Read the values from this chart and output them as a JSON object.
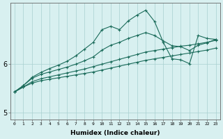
{
  "xlabel": "Humidex (Indice chaleur)",
  "bg_color": "#d8f0f0",
  "grid_color": "#a8d0d0",
  "line_color": "#1a6b5a",
  "ylim_min": 4.85,
  "ylim_max": 7.25,
  "yticks": [
    5.0,
    6.0
  ],
  "xticks": [
    0,
    1,
    2,
    3,
    4,
    5,
    6,
    7,
    8,
    9,
    10,
    11,
    12,
    13,
    14,
    15,
    16,
    17,
    18,
    19,
    20,
    21,
    22,
    23
  ],
  "x_values": [
    0,
    1,
    2,
    3,
    4,
    5,
    6,
    7,
    8,
    9,
    10,
    11,
    12,
    13,
    14,
    15,
    16,
    17,
    18,
    19,
    20,
    21,
    22,
    23
  ],
  "line_bottom": [
    5.42,
    5.52,
    5.6,
    5.65,
    5.68,
    5.71,
    5.74,
    5.77,
    5.8,
    5.83,
    5.87,
    5.91,
    5.95,
    5.99,
    6.03,
    6.07,
    6.1,
    6.13,
    6.16,
    6.19,
    6.22,
    6.25,
    6.28,
    6.32
  ],
  "line_low": [
    5.42,
    5.52,
    5.63,
    5.69,
    5.73,
    5.77,
    5.81,
    5.85,
    5.89,
    5.94,
    5.99,
    6.04,
    6.09,
    6.14,
    6.19,
    6.24,
    6.27,
    6.3,
    6.33,
    6.36,
    6.38,
    6.41,
    6.44,
    6.48
  ],
  "line_mid": [
    5.42,
    5.55,
    5.7,
    5.78,
    5.83,
    5.88,
    5.93,
    5.99,
    6.06,
    6.14,
    6.28,
    6.38,
    6.44,
    6.52,
    6.58,
    6.64,
    6.58,
    6.47,
    6.37,
    6.35,
    6.27,
    6.38,
    6.43,
    6.5
  ],
  "line_peak": [
    5.42,
    5.55,
    5.72,
    5.82,
    5.9,
    5.97,
    6.05,
    6.16,
    6.3,
    6.44,
    6.7,
    6.77,
    6.7,
    6.88,
    7.0,
    7.1,
    6.87,
    6.44,
    6.1,
    6.08,
    6.0,
    6.58,
    6.52,
    6.5
  ]
}
